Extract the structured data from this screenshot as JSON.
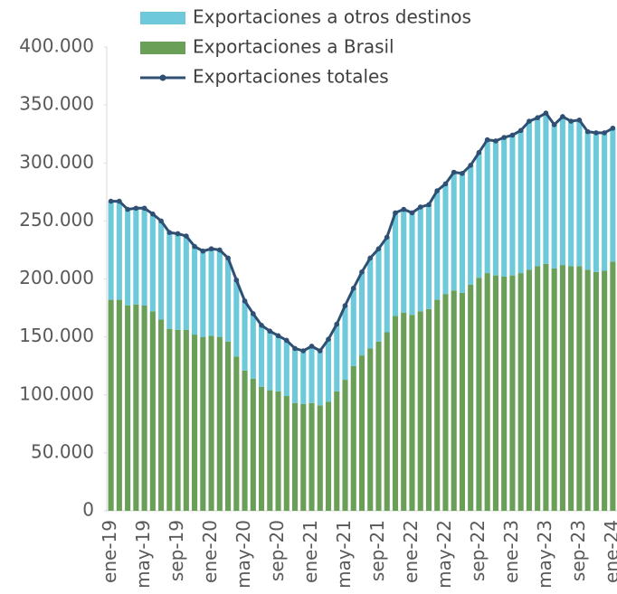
{
  "chart_data": {
    "type": "stacked_bar_line",
    "categories": [
      "ene-19",
      null,
      null,
      null,
      "may-19",
      null,
      null,
      null,
      "sep-19",
      null,
      null,
      null,
      "ene-20",
      null,
      null,
      null,
      "may-20",
      null,
      null,
      null,
      "sep-20",
      null,
      null,
      null,
      "ene-21",
      null,
      null,
      null,
      "may-21",
      null,
      null,
      null,
      "sep-21",
      null,
      null,
      null,
      "ene-22",
      null,
      null,
      null,
      "may-22",
      null,
      null,
      null,
      "sep-22",
      null,
      null,
      null,
      "ene-23",
      null,
      null,
      null,
      "may-23",
      null,
      null,
      null,
      "sep-23",
      null,
      null,
      null,
      "ene-24"
    ],
    "series": [
      {
        "name": "Exportaciones a otros destinos",
        "color": "#6ecadb",
        "kind": "bar",
        "values": [
          85000,
          85000,
          83000,
          83000,
          84000,
          84000,
          85000,
          83000,
          83000,
          81000,
          76000,
          74000,
          75000,
          75000,
          72000,
          66000,
          60000,
          56000,
          53000,
          51000,
          48000,
          48000,
          47000,
          46000,
          49000,
          47000,
          54000,
          58000,
          64000,
          67000,
          72000,
          78000,
          80000,
          82000,
          89000,
          89000,
          88000,
          90000,
          90000,
          94000,
          95000,
          102000,
          103000,
          103000,
          108000,
          115000,
          116000,
          120000,
          121000,
          123000,
          128000,
          128000,
          130000,
          124000,
          128000,
          125000,
          126000,
          119000,
          120000,
          119000,
          115000
        ]
      },
      {
        "name": "Exportaciones a Brasil",
        "color": "#6a9f58",
        "kind": "bar",
        "values": [
          182000,
          182000,
          177000,
          178000,
          177000,
          172000,
          165000,
          157000,
          156000,
          156000,
          152000,
          150000,
          151000,
          150000,
          146000,
          133000,
          121000,
          114000,
          107000,
          104000,
          103000,
          99000,
          93000,
          92000,
          93000,
          91000,
          94000,
          103000,
          113000,
          125000,
          134000,
          140000,
          146000,
          154000,
          168000,
          171000,
          169000,
          172000,
          174000,
          182000,
          187000,
          190000,
          188000,
          195000,
          201000,
          205000,
          203000,
          202000,
          203000,
          205000,
          208000,
          211000,
          213000,
          209000,
          212000,
          211000,
          211000,
          208000,
          206000,
          207000,
          215000
        ]
      },
      {
        "name": "Exportaciones totales",
        "color": "#2f4f73",
        "kind": "line",
        "values": [
          267000,
          267000,
          260000,
          261000,
          261000,
          256000,
          250000,
          240000,
          239000,
          237000,
          228000,
          224000,
          226000,
          225000,
          218000,
          199000,
          181000,
          170000,
          160000,
          155000,
          151000,
          147000,
          140000,
          138000,
          142000,
          138000,
          148000,
          161000,
          177000,
          192000,
          206000,
          218000,
          226000,
          236000,
          257000,
          260000,
          257000,
          262000,
          264000,
          276000,
          282000,
          292000,
          291000,
          298000,
          309000,
          320000,
          319000,
          322000,
          324000,
          328000,
          336000,
          339000,
          343000,
          333000,
          340000,
          336000,
          337000,
          327000,
          326000,
          326000,
          330000
        ]
      }
    ],
    "ylim": [
      0,
      400000
    ],
    "yticks": [
      0,
      {
        "value": 50000,
        "label": "50.000"
      },
      {
        "value": 100000,
        "label": "100.000"
      },
      {
        "value": 150000,
        "label": "150.000"
      },
      {
        "value": 200000,
        "label": "200.000"
      },
      {
        "value": 250000,
        "label": "250.000"
      },
      {
        "value": 300000,
        "label": "300.000"
      },
      {
        "value": 350000,
        "label": "350.000"
      },
      {
        "value": 400000,
        "label": "400.000"
      }
    ],
    "grid": false,
    "legend": "top"
  }
}
